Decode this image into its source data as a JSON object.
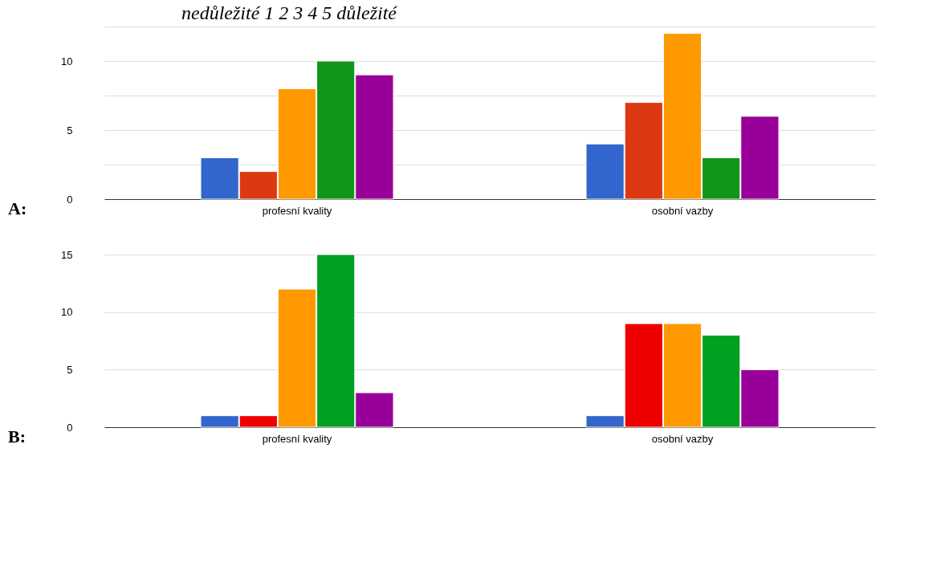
{
  "chart_data": [
    {
      "type": "bar",
      "title": "nedůležité 1 2 3 4 5 důležité",
      "annotations": [
        "A:"
      ],
      "categories": [
        "profesní kvality",
        "osobní vazby"
      ],
      "series": [
        {
          "color": "#3366cc",
          "values": [
            3,
            4
          ]
        },
        {
          "color": "#dc3912",
          "values": [
            2,
            7
          ]
        },
        {
          "color": "#ff9900",
          "values": [
            8,
            12
          ]
        },
        {
          "color": "#109618",
          "values": [
            10,
            3
          ]
        },
        {
          "color": "#990099",
          "values": [
            9,
            6
          ]
        }
      ],
      "ylim": [
        0,
        12.5
      ],
      "yticks": [
        0,
        {
          "value": 2.5,
          "label": null
        },
        5,
        {
          "value": 7.5,
          "label": null
        },
        10,
        {
          "value": 12.5,
          "label": null
        }
      ],
      "grid": "y",
      "legend": false
    },
    {
      "type": "bar",
      "annotations": [
        "B:"
      ],
      "categories": [
        "profesní kvality",
        "osobní vazby"
      ],
      "series": [
        {
          "color": "#3366cc",
          "values": [
            1,
            1
          ]
        },
        {
          "color": "#ee0000",
          "values": [
            1,
            9
          ]
        },
        {
          "color": "#ff9900",
          "values": [
            12,
            9
          ]
        },
        {
          "color": "#00a020",
          "values": [
            15,
            8
          ]
        },
        {
          "color": "#990099",
          "values": [
            3,
            5
          ]
        }
      ],
      "ylim": [
        0,
        15
      ],
      "yticks": [
        0,
        5,
        10,
        15
      ],
      "grid": "y",
      "legend": false
    }
  ]
}
